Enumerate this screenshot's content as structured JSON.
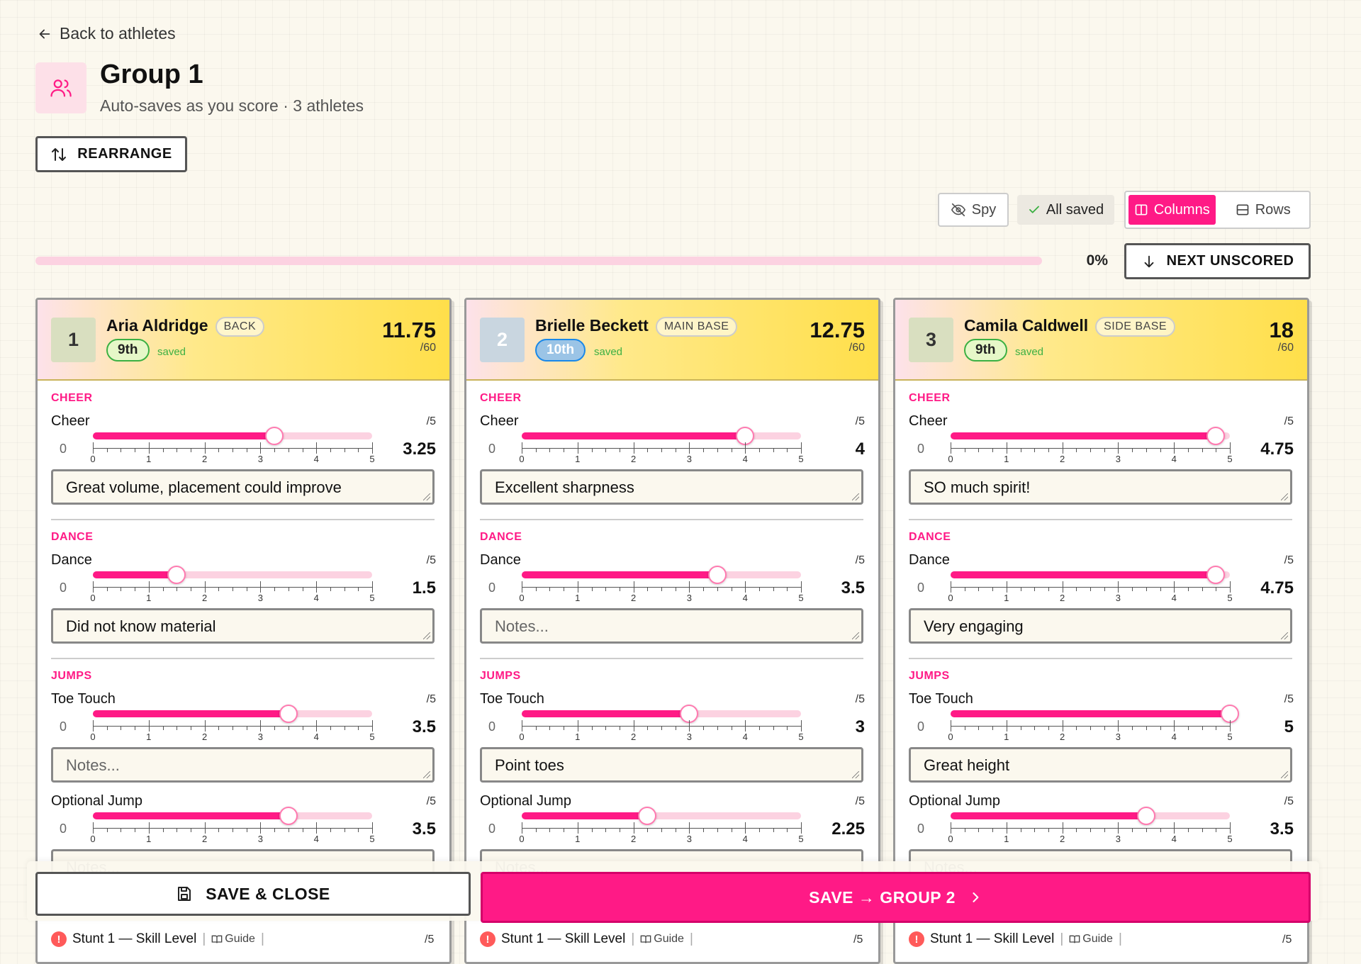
{
  "nav": {
    "back_label": "Back to athletes"
  },
  "header": {
    "title": "Group 1",
    "subtitle": "Auto-saves as you score · 3 athletes",
    "rearrange_label": "REARRANGE"
  },
  "toolbar": {
    "spy_label": "Spy",
    "status_label": "All saved",
    "view_columns_label": "Columns",
    "view_rows_label": "Rows",
    "active_view": "Columns"
  },
  "progress": {
    "percent_label": "0%",
    "fraction": 0,
    "next_label": "NEXT UNSCORED"
  },
  "athletes": [
    {
      "order": "1",
      "name": "Aria Aldridge",
      "role": "BACK",
      "grade": "9th",
      "saved_label": "saved",
      "total": "11.75",
      "total_max": "/60",
      "sections": [
        {
          "label": "CHEER",
          "criteria": [
            {
              "name": "Cheer",
              "max": "/5",
              "value": 3.25,
              "value_label": "3.25",
              "note": "Great volume, placement could improve"
            }
          ]
        },
        {
          "label": "DANCE",
          "criteria": [
            {
              "name": "Dance",
              "max": "/5",
              "value": 1.5,
              "value_label": "1.5",
              "note": "Did not know material"
            }
          ]
        },
        {
          "label": "JUMPS",
          "criteria": [
            {
              "name": "Toe Touch",
              "max": "/5",
              "value": 3.5,
              "value_label": "3.5",
              "note": ""
            },
            {
              "name": "Optional Jump",
              "max": "/5",
              "value": 3.5,
              "value_label": "3.5",
              "note": ""
            }
          ]
        }
      ],
      "stunt": {
        "name": "Stunt 1 — Skill Level",
        "guide_label": "Guide",
        "max": "/5"
      }
    },
    {
      "order": "2",
      "name": "Brielle Beckett",
      "role": "MAIN BASE",
      "grade": "10th",
      "saved_label": "saved",
      "total": "12.75",
      "total_max": "/60",
      "sections": [
        {
          "label": "CHEER",
          "criteria": [
            {
              "name": "Cheer",
              "max": "/5",
              "value": 4,
              "value_label": "4",
              "note": "Excellent sharpness"
            }
          ]
        },
        {
          "label": "DANCE",
          "criteria": [
            {
              "name": "Dance",
              "max": "/5",
              "value": 3.5,
              "value_label": "3.5",
              "note": ""
            }
          ]
        },
        {
          "label": "JUMPS",
          "criteria": [
            {
              "name": "Toe Touch",
              "max": "/5",
              "value": 3,
              "value_label": "3",
              "note": "Point toes"
            },
            {
              "name": "Optional Jump",
              "max": "/5",
              "value": 2.25,
              "value_label": "2.25",
              "note": ""
            }
          ]
        }
      ],
      "stunt": {
        "name": "Stunt 1 — Skill Level",
        "guide_label": "Guide",
        "max": "/5"
      }
    },
    {
      "order": "3",
      "name": "Camila Caldwell",
      "role": "SIDE BASE",
      "grade": "9th",
      "saved_label": "saved",
      "total": "18",
      "total_max": "/60",
      "sections": [
        {
          "label": "CHEER",
          "criteria": [
            {
              "name": "Cheer",
              "max": "/5",
              "value": 4.75,
              "value_label": "4.75",
              "note": "SO much spirit!"
            }
          ]
        },
        {
          "label": "DANCE",
          "criteria": [
            {
              "name": "Dance",
              "max": "/5",
              "value": 4.75,
              "value_label": "4.75",
              "note": "Very engaging"
            }
          ]
        },
        {
          "label": "JUMPS",
          "criteria": [
            {
              "name": "Toe Touch",
              "max": "/5",
              "value": 5,
              "value_label": "5",
              "note": "Great height"
            },
            {
              "name": "Optional Jump",
              "max": "/5",
              "value": 3.5,
              "value_label": "3.5",
              "note": ""
            }
          ]
        }
      ],
      "stunt": {
        "name": "Stunt 1 — Skill Level",
        "guide_label": "Guide",
        "max": "/5"
      }
    }
  ],
  "scale": {
    "min_label": "0",
    "max": 5,
    "tick_labels": [
      "0",
      "1",
      "2",
      "3",
      "4",
      "5"
    ]
  },
  "notes_placeholder": "Notes...",
  "footer": {
    "save_close_label": "SAVE & CLOSE",
    "save_next_label": "SAVE → GROUP 2"
  },
  "colors": {
    "accent": "#ff1a86",
    "accent_light": "#fcd2e1",
    "saved_green": "#3cb043",
    "header_yellow": "#ffdf4a",
    "background": "#fbf8ee"
  }
}
